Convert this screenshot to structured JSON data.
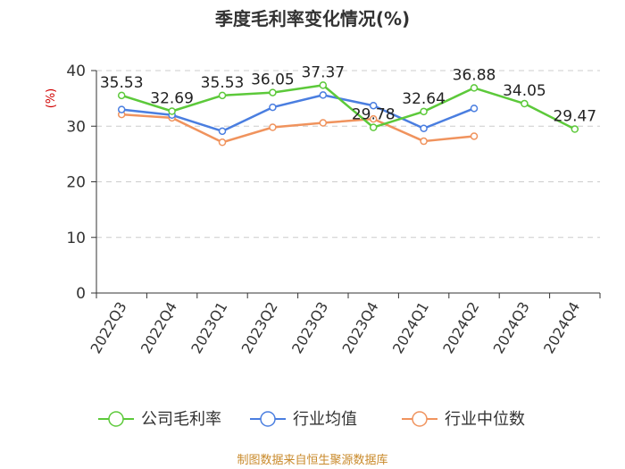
{
  "chart_data": {
    "type": "line",
    "title": "季度毛利率变化情况(%)",
    "ylabel": "(%)",
    "ylim": [
      0,
      40
    ],
    "yticks": [
      0,
      10,
      20,
      30,
      40
    ],
    "grid": true,
    "legend_position": "bottom",
    "categories": [
      "2022Q3",
      "2022Q4",
      "2023Q1",
      "2023Q2",
      "2023Q3",
      "2023Q4",
      "2024Q1",
      "2024Q2",
      "2024Q3",
      "2024Q4"
    ],
    "series": [
      {
        "name": "公司毛利率",
        "color": "#5cc93a",
        "values": [
          35.53,
          32.69,
          35.53,
          36.05,
          37.37,
          29.78,
          32.64,
          36.88,
          34.05,
          29.47
        ],
        "data_labels": [
          "35.53",
          "32.69",
          "35.53",
          "36.05",
          "37.37",
          "29.78",
          "32.64",
          "36.88",
          "34.05",
          "29.47"
        ]
      },
      {
        "name": "行业均值",
        "color": "#4a7ee0",
        "values": [
          33.0,
          32.0,
          29.1,
          33.4,
          35.6,
          33.7,
          29.6,
          33.2,
          null,
          null
        ]
      },
      {
        "name": "行业中位数",
        "color": "#f0935d",
        "values": [
          32.1,
          31.5,
          27.1,
          29.8,
          30.6,
          31.3,
          27.3,
          28.2,
          null,
          null
        ]
      }
    ]
  },
  "footer": {
    "source": "制图数据来自恒生聚源数据库"
  }
}
